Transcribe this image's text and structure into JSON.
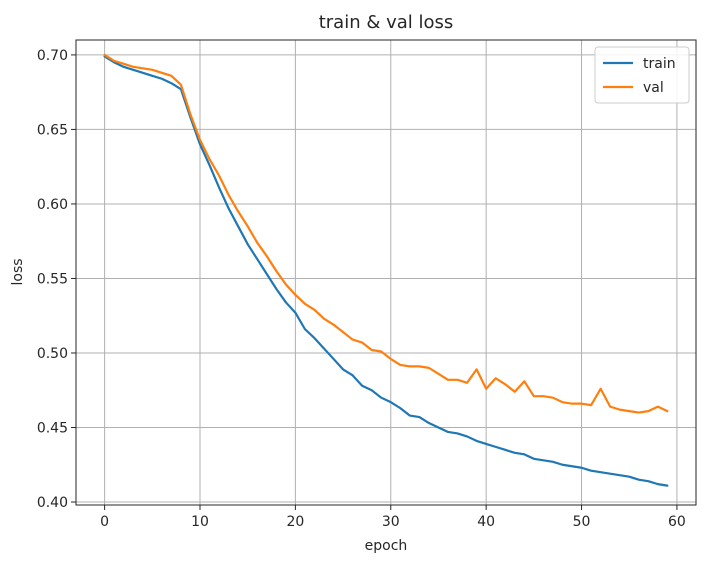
{
  "chart_data": {
    "type": "line",
    "title": "train & val loss",
    "xlabel": "epoch",
    "ylabel": "loss",
    "xlim": [
      -3,
      62
    ],
    "ylim": [
      0.398,
      0.71
    ],
    "xticks": [
      0,
      10,
      20,
      30,
      40,
      50,
      60
    ],
    "yticks": [
      0.4,
      0.45,
      0.5,
      0.55,
      0.6,
      0.65,
      0.7
    ],
    "grid": true,
    "legend_position": "top-right",
    "series": [
      {
        "name": "train",
        "color": "#1f77b4",
        "x": [
          0,
          1,
          2,
          3,
          4,
          5,
          6,
          7,
          8,
          9,
          10,
          11,
          12,
          13,
          14,
          15,
          16,
          17,
          18,
          19,
          20,
          21,
          22,
          23,
          24,
          25,
          26,
          27,
          28,
          29,
          30,
          31,
          32,
          33,
          34,
          35,
          36,
          37,
          38,
          39,
          40,
          41,
          42,
          43,
          44,
          45,
          46,
          47,
          48,
          49,
          50,
          51,
          52,
          53,
          54,
          55,
          56,
          57,
          58,
          59
        ],
        "values": [
          0.699,
          0.695,
          0.692,
          0.69,
          0.688,
          0.686,
          0.684,
          0.681,
          0.677,
          0.658,
          0.64,
          0.626,
          0.611,
          0.597,
          0.585,
          0.573,
          0.563,
          0.553,
          0.543,
          0.534,
          0.527,
          0.516,
          0.51,
          0.503,
          0.496,
          0.489,
          0.485,
          0.478,
          0.475,
          0.47,
          0.467,
          0.463,
          0.458,
          0.457,
          0.453,
          0.45,
          0.447,
          0.446,
          0.444,
          0.441,
          0.439,
          0.437,
          0.435,
          0.433,
          0.432,
          0.429,
          0.428,
          0.427,
          0.425,
          0.424,
          0.423,
          0.421,
          0.42,
          0.419,
          0.418,
          0.417,
          0.415,
          0.414,
          0.412,
          0.411
        ]
      },
      {
        "name": "val",
        "color": "#ff7f0e",
        "x": [
          0,
          1,
          2,
          3,
          4,
          5,
          6,
          7,
          8,
          9,
          10,
          11,
          12,
          13,
          14,
          15,
          16,
          17,
          18,
          19,
          20,
          21,
          22,
          23,
          24,
          25,
          26,
          27,
          28,
          29,
          30,
          31,
          32,
          33,
          34,
          35,
          36,
          37,
          38,
          39,
          40,
          41,
          42,
          43,
          44,
          45,
          46,
          47,
          48,
          49,
          50,
          51,
          52,
          53,
          54,
          55,
          56,
          57,
          58,
          59
        ],
        "values": [
          0.7,
          0.696,
          0.694,
          0.692,
          0.691,
          0.69,
          0.688,
          0.686,
          0.68,
          0.66,
          0.643,
          0.63,
          0.619,
          0.606,
          0.595,
          0.585,
          0.574,
          0.565,
          0.555,
          0.546,
          0.539,
          0.533,
          0.529,
          0.523,
          0.519,
          0.514,
          0.509,
          0.507,
          0.502,
          0.501,
          0.496,
          0.492,
          0.491,
          0.491,
          0.49,
          0.486,
          0.482,
          0.482,
          0.48,
          0.489,
          0.476,
          0.483,
          0.479,
          0.474,
          0.481,
          0.471,
          0.471,
          0.47,
          0.467,
          0.466,
          0.466,
          0.465,
          0.476,
          0.464,
          0.462,
          0.461,
          0.46,
          0.461,
          0.464,
          0.461
        ]
      }
    ]
  }
}
